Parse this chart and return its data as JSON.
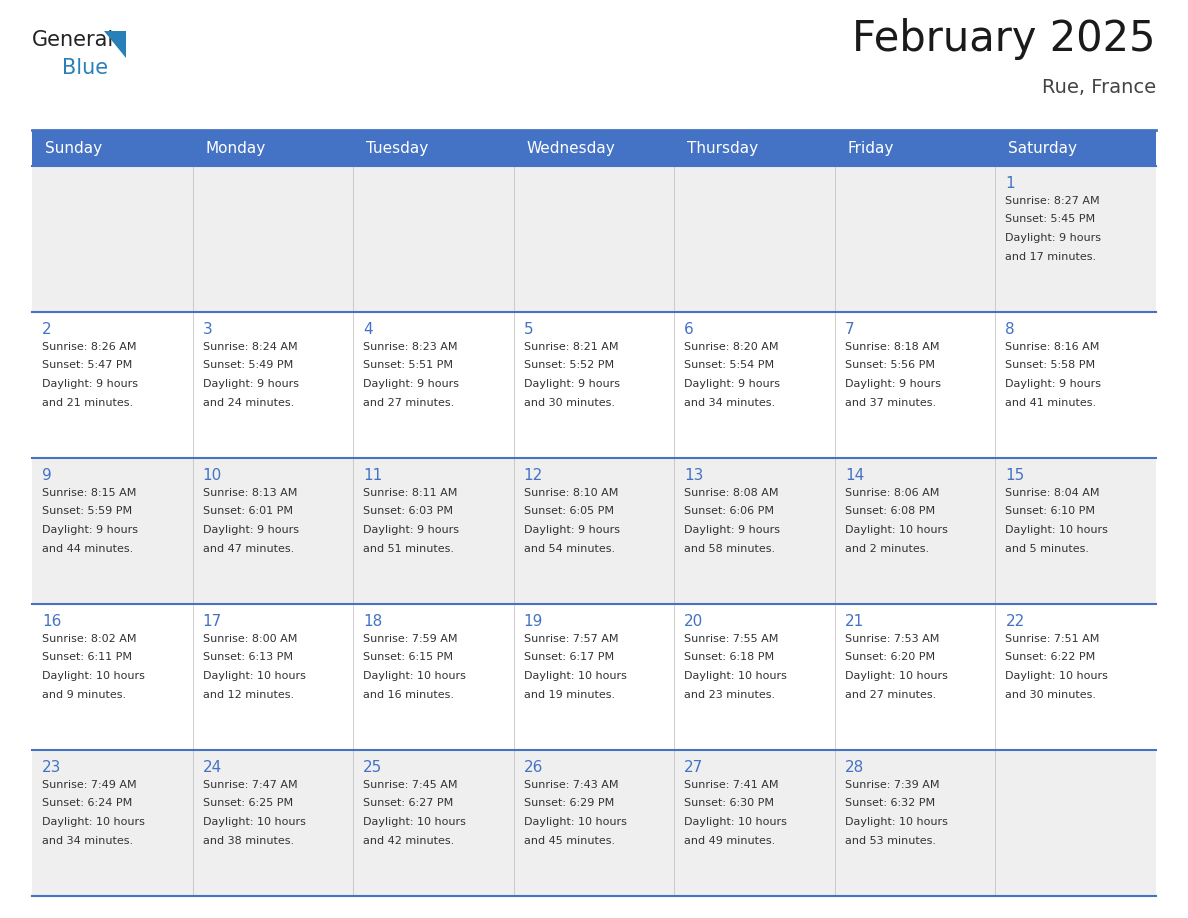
{
  "title": "February 2025",
  "subtitle": "Rue, France",
  "days_of_week": [
    "Sunday",
    "Monday",
    "Tuesday",
    "Wednesday",
    "Thursday",
    "Friday",
    "Saturday"
  ],
  "header_bg": "#4472C4",
  "header_text": "#FFFFFF",
  "row_bg_odd": "#EFEFEF",
  "row_bg_even": "#FFFFFF",
  "border_color": "#4472C4",
  "text_color": "#333333",
  "day_num_color": "#4472C4",
  "calendar_data": [
    [
      null,
      null,
      null,
      null,
      null,
      null,
      {
        "day": 1,
        "sunrise": "8:27 AM",
        "sunset": "5:45 PM",
        "daylight": "9 hours and 17 minutes."
      }
    ],
    [
      {
        "day": 2,
        "sunrise": "8:26 AM",
        "sunset": "5:47 PM",
        "daylight": "9 hours and 21 minutes."
      },
      {
        "day": 3,
        "sunrise": "8:24 AM",
        "sunset": "5:49 PM",
        "daylight": "9 hours and 24 minutes."
      },
      {
        "day": 4,
        "sunrise": "8:23 AM",
        "sunset": "5:51 PM",
        "daylight": "9 hours and 27 minutes."
      },
      {
        "day": 5,
        "sunrise": "8:21 AM",
        "sunset": "5:52 PM",
        "daylight": "9 hours and 30 minutes."
      },
      {
        "day": 6,
        "sunrise": "8:20 AM",
        "sunset": "5:54 PM",
        "daylight": "9 hours and 34 minutes."
      },
      {
        "day": 7,
        "sunrise": "8:18 AM",
        "sunset": "5:56 PM",
        "daylight": "9 hours and 37 minutes."
      },
      {
        "day": 8,
        "sunrise": "8:16 AM",
        "sunset": "5:58 PM",
        "daylight": "9 hours and 41 minutes."
      }
    ],
    [
      {
        "day": 9,
        "sunrise": "8:15 AM",
        "sunset": "5:59 PM",
        "daylight": "9 hours and 44 minutes."
      },
      {
        "day": 10,
        "sunrise": "8:13 AM",
        "sunset": "6:01 PM",
        "daylight": "9 hours and 47 minutes."
      },
      {
        "day": 11,
        "sunrise": "8:11 AM",
        "sunset": "6:03 PM",
        "daylight": "9 hours and 51 minutes."
      },
      {
        "day": 12,
        "sunrise": "8:10 AM",
        "sunset": "6:05 PM",
        "daylight": "9 hours and 54 minutes."
      },
      {
        "day": 13,
        "sunrise": "8:08 AM",
        "sunset": "6:06 PM",
        "daylight": "9 hours and 58 minutes."
      },
      {
        "day": 14,
        "sunrise": "8:06 AM",
        "sunset": "6:08 PM",
        "daylight": "10 hours and 2 minutes."
      },
      {
        "day": 15,
        "sunrise": "8:04 AM",
        "sunset": "6:10 PM",
        "daylight": "10 hours and 5 minutes."
      }
    ],
    [
      {
        "day": 16,
        "sunrise": "8:02 AM",
        "sunset": "6:11 PM",
        "daylight": "10 hours and 9 minutes."
      },
      {
        "day": 17,
        "sunrise": "8:00 AM",
        "sunset": "6:13 PM",
        "daylight": "10 hours and 12 minutes."
      },
      {
        "day": 18,
        "sunrise": "7:59 AM",
        "sunset": "6:15 PM",
        "daylight": "10 hours and 16 minutes."
      },
      {
        "day": 19,
        "sunrise": "7:57 AM",
        "sunset": "6:17 PM",
        "daylight": "10 hours and 19 minutes."
      },
      {
        "day": 20,
        "sunrise": "7:55 AM",
        "sunset": "6:18 PM",
        "daylight": "10 hours and 23 minutes."
      },
      {
        "day": 21,
        "sunrise": "7:53 AM",
        "sunset": "6:20 PM",
        "daylight": "10 hours and 27 minutes."
      },
      {
        "day": 22,
        "sunrise": "7:51 AM",
        "sunset": "6:22 PM",
        "daylight": "10 hours and 30 minutes."
      }
    ],
    [
      {
        "day": 23,
        "sunrise": "7:49 AM",
        "sunset": "6:24 PM",
        "daylight": "10 hours and 34 minutes."
      },
      {
        "day": 24,
        "sunrise": "7:47 AM",
        "sunset": "6:25 PM",
        "daylight": "10 hours and 38 minutes."
      },
      {
        "day": 25,
        "sunrise": "7:45 AM",
        "sunset": "6:27 PM",
        "daylight": "10 hours and 42 minutes."
      },
      {
        "day": 26,
        "sunrise": "7:43 AM",
        "sunset": "6:29 PM",
        "daylight": "10 hours and 45 minutes."
      },
      {
        "day": 27,
        "sunrise": "7:41 AM",
        "sunset": "6:30 PM",
        "daylight": "10 hours and 49 minutes."
      },
      {
        "day": 28,
        "sunrise": "7:39 AM",
        "sunset": "6:32 PM",
        "daylight": "10 hours and 53 minutes."
      },
      null
    ]
  ],
  "logo_text1": "General",
  "logo_text2": "Blue",
  "logo_color1": "#222222",
  "logo_color2": "#2980B9",
  "logo_triangle_color": "#2980B9"
}
